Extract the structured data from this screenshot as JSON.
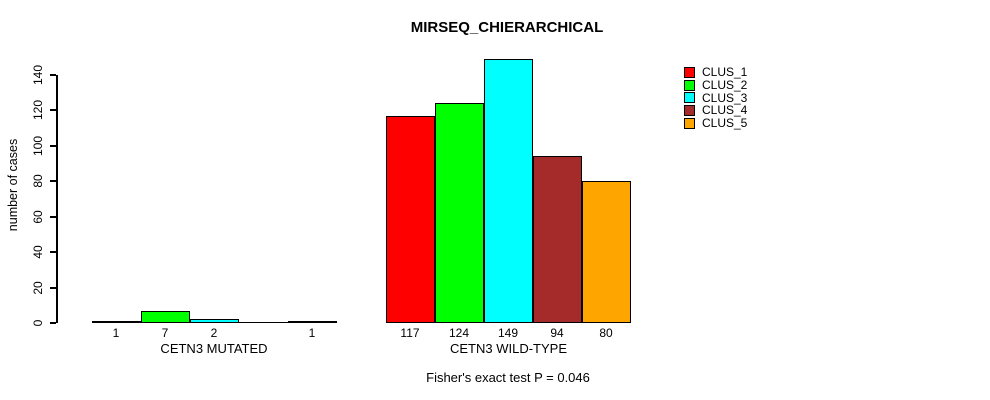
{
  "chart_data": {
    "type": "bar",
    "title": "MIRSEQ_CHIERARCHICAL",
    "xlabel": "",
    "ylabel": "number of cases",
    "ylim": [
      0,
      140
    ],
    "yticks": [
      0,
      20,
      40,
      60,
      80,
      100,
      120,
      140
    ],
    "grid": false,
    "legend_position": "top-right",
    "annotation": "Fisher's exact test P = 0.046",
    "categories": [
      "CETN3 MUTATED",
      "CETN3 WILD-TYPE"
    ],
    "series": [
      {
        "name": "CLUS_1",
        "color": "#FF0000",
        "values": [
          1,
          117
        ]
      },
      {
        "name": "CLUS_2",
        "color": "#00FF00",
        "values": [
          7,
          124
        ]
      },
      {
        "name": "CLUS_3",
        "color": "#00FFFF",
        "values": [
          2,
          149
        ]
      },
      {
        "name": "CLUS_4",
        "color": "#A52A2A",
        "values": [
          0,
          94
        ]
      },
      {
        "name": "CLUS_5",
        "color": "#FFA500",
        "values": [
          1,
          80
        ]
      }
    ],
    "bar_value_labels": [
      [
        "1",
        "7",
        "2",
        "",
        "1"
      ],
      [
        "117",
        "124",
        "149",
        "94",
        "80"
      ]
    ],
    "axis_color": "#000000",
    "background_color": "#FFFFFF"
  }
}
